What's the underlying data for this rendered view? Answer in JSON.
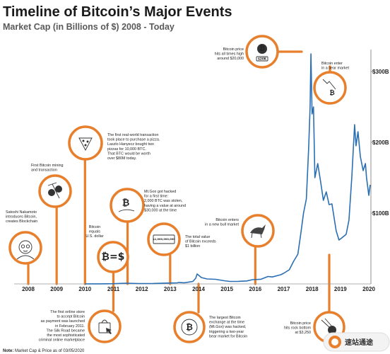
{
  "chart_data": {
    "type": "line",
    "title": "Timeline of Bitcoin’s Major Events",
    "subtitle": "Market Cap (in Billions of $) 2008 - Today",
    "xlabel": "",
    "ylabel": "",
    "xlim": [
      2007.6,
      2020.05
    ],
    "ylim": [
      0,
      330
    ],
    "x_ticks": [
      "2008",
      "2009",
      "2010",
      "2011",
      "2012",
      "2013",
      "2014",
      "2015",
      "2016",
      "2017",
      "2018",
      "2019",
      "2020"
    ],
    "y_ticks": [
      {
        "value": 100,
        "label": "$100B"
      },
      {
        "value": 200,
        "label": "$200B"
      },
      {
        "value": 300,
        "label": "$300B"
      }
    ],
    "grid": false,
    "line_color": "#2a6fb3",
    "accent_color": "#e87f2c",
    "series": [
      {
        "values": [
          [
            2010.0,
            0
          ],
          [
            2010.5,
            0.1
          ],
          [
            2011.0,
            0.3
          ],
          [
            2011.45,
            1.0
          ],
          [
            2011.9,
            0.5
          ],
          [
            2012.4,
            0.6
          ],
          [
            2012.9,
            1.2
          ],
          [
            2013.25,
            1.5
          ],
          [
            2013.3,
            2.0
          ],
          [
            2013.5,
            1.6
          ],
          [
            2013.8,
            3.5
          ],
          [
            2013.9,
            8
          ],
          [
            2013.95,
            14
          ],
          [
            2014.1,
            9
          ],
          [
            2014.3,
            7
          ],
          [
            2014.6,
            6.5
          ],
          [
            2014.9,
            4.5
          ],
          [
            2015.1,
            3.5
          ],
          [
            2015.4,
            3.6
          ],
          [
            2015.7,
            4.2
          ],
          [
            2015.9,
            6
          ],
          [
            2016.2,
            6.6
          ],
          [
            2016.45,
            10.5
          ],
          [
            2016.6,
            9.8
          ],
          [
            2016.9,
            13
          ],
          [
            2017.0,
            15
          ],
          [
            2017.2,
            20
          ],
          [
            2017.35,
            32
          ],
          [
            2017.5,
            42
          ],
          [
            2017.6,
            70
          ],
          [
            2017.7,
            100
          ],
          [
            2017.8,
            120
          ],
          [
            2017.88,
            190
          ],
          [
            2017.93,
            250
          ],
          [
            2017.96,
            325
          ],
          [
            2018.0,
            240
          ],
          [
            2018.05,
            250
          ],
          [
            2018.1,
            150
          ],
          [
            2018.2,
            170
          ],
          [
            2018.3,
            145
          ],
          [
            2018.4,
            118
          ],
          [
            2018.5,
            130
          ],
          [
            2018.6,
            112
          ],
          [
            2018.7,
            113
          ],
          [
            2018.85,
            75
          ],
          [
            2018.95,
            62
          ],
          [
            2019.05,
            65
          ],
          [
            2019.2,
            70
          ],
          [
            2019.3,
            90
          ],
          [
            2019.4,
            150
          ],
          [
            2019.5,
            225
          ],
          [
            2019.55,
            195
          ],
          [
            2019.62,
            215
          ],
          [
            2019.7,
            180
          ],
          [
            2019.8,
            160
          ],
          [
            2019.88,
            170
          ],
          [
            2019.92,
            150
          ],
          [
            2020.0,
            125
          ],
          [
            2020.05,
            140
          ]
        ]
      }
    ],
    "annotations": [
      {
        "id": "nakamoto",
        "year": 2008.0,
        "text": [
          "Satoshi Nakamoto",
          "introduces Bitcoin,",
          "creates Blockchain"
        ],
        "icon": "satoshi-face-icon"
      },
      {
        "id": "mining",
        "year": 2009.0,
        "text": [
          "First Bitcoin mining",
          "and transaction"
        ],
        "icon": "mining-coins-icon"
      },
      {
        "id": "pizza",
        "year": 2010.0,
        "text": [
          "The first real-world transaction",
          "took place to purchase a pizza.",
          "Laszlo Hanyecz bought two",
          "pizzas for 10,000 BTC.",
          "That BTC would be worth",
          "over $80M today."
        ],
        "icon": "pizza-icon"
      },
      {
        "id": "silkroad",
        "year": 2011.0,
        "text": [
          "The first online store",
          "to accept Bitcoin",
          "as payment was launched",
          "in February 2011.",
          "The Silk Road became",
          "the most sophisticated",
          "criminal online marketplace"
        ],
        "icon": "shopping-bag-icon"
      },
      {
        "id": "parity",
        "year": 2011.0,
        "text": [
          "Bitcoin",
          "equals",
          "U.S. dollar"
        ],
        "icon": "bitcoin-equals-dollar-icon",
        "glyph": "₿=$"
      },
      {
        "id": "mtgox-hack-2011",
        "year": 2011.5,
        "text": [
          "Mt.Gox got hacked",
          "for a first time:",
          "2,000 BTC was stolen,",
          "having a value at around",
          "$30,000 at the time"
        ],
        "icon": "bitcoin-hand-icon",
        "glyph": "₿"
      },
      {
        "id": "billion",
        "year": 2013.0,
        "text": [
          "The total value",
          "of Bitcoin exceeds",
          "$1 billion"
        ],
        "icon": "billion-note-icon",
        "glyph": "$1,000,000,000"
      },
      {
        "id": "mtgox-2014",
        "year": 2014.0,
        "text": [
          "The largest Bitcoin",
          "exchange at the time",
          "(Mt.Gox) was hacked,",
          "triggering a two-year",
          "bear market for Bitcoin"
        ],
        "icon": "bitcoin-coin-icon",
        "glyph": "₿"
      },
      {
        "id": "bull",
        "year": 2016.0,
        "text": [
          "Bitcoin enters",
          "in a new bull market"
        ],
        "icon": "bull-icon"
      },
      {
        "id": "ath",
        "year": 2017.9,
        "text": [
          "Bitcoin price",
          "hits all times high",
          "around $20,000"
        ],
        "icon": "bitcoin-rocket-icon",
        "glyph": "₿",
        "tag": "$20K"
      },
      {
        "id": "bear",
        "year": 2018.3,
        "text": [
          "Bitcoin enter",
          "in a bear market"
        ],
        "icon": "bear-icon",
        "glyph": "₿"
      },
      {
        "id": "bottom",
        "year": 2018.95,
        "text": [
          "Bitcoin price",
          "hits rock bottom",
          "at $3,250"
        ],
        "icon": "falling-comet-icon"
      }
    ],
    "note": {
      "label": "Note:",
      "text": " Market Cap & Price as of 03/05/2020"
    },
    "watermark": "速站通途"
  }
}
